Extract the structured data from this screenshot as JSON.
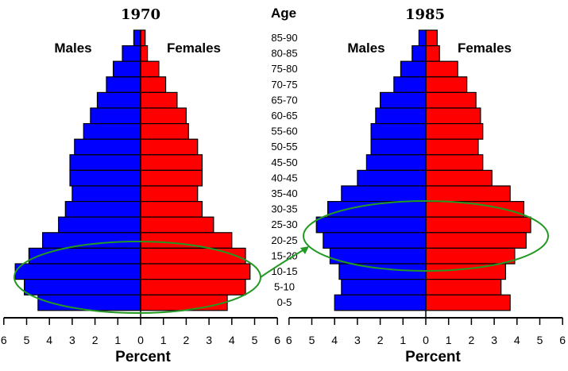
{
  "chart_data": {
    "type": "bar",
    "axis_title": "Age",
    "xlabel": "Percent",
    "xlim": [
      0,
      6
    ],
    "ticks": [
      "6",
      "5",
      "4",
      "3",
      "2",
      "1",
      "0",
      "1",
      "2",
      "3",
      "4",
      "5",
      "6"
    ],
    "categories": [
      "85-90",
      "80-85",
      "75-80",
      "70-75",
      "65-70",
      "60-65",
      "55-60",
      "50-55",
      "45-50",
      "40-45",
      "35-40",
      "30-35",
      "25-30",
      "20-25",
      "15-20",
      "10-15",
      "5-10",
      "0-5"
    ],
    "colors": {
      "male": "#0000ff",
      "female": "#ff0000",
      "highlight": "#229922"
    },
    "panels": [
      {
        "title": "1970",
        "males_label": "Males",
        "females_label": "Females",
        "series": [
          {
            "name": "Males",
            "values": [
              0.3,
              0.8,
              1.2,
              1.5,
              1.9,
              2.2,
              2.5,
              2.9,
              3.1,
              3.1,
              3.0,
              3.3,
              3.6,
              4.3,
              4.9,
              5.5,
              5.1,
              4.5
            ]
          },
          {
            "name": "Females",
            "values": [
              0.2,
              0.3,
              0.8,
              1.1,
              1.6,
              2.0,
              2.1,
              2.5,
              2.7,
              2.7,
              2.5,
              2.7,
              3.2,
              4.0,
              4.6,
              4.8,
              4.6,
              3.8
            ]
          }
        ],
        "highlight": "10-20"
      },
      {
        "title": "1985",
        "males_label": "Males",
        "females_label": "Females",
        "series": [
          {
            "name": "Males",
            "values": [
              0.3,
              0.6,
              1.1,
              1.4,
              2.0,
              2.2,
              2.4,
              2.4,
              2.6,
              3.0,
              3.7,
              4.3,
              4.8,
              4.5,
              4.2,
              3.8,
              3.7,
              4.0
            ]
          },
          {
            "name": "Females",
            "values": [
              0.5,
              0.6,
              1.4,
              1.8,
              2.2,
              2.4,
              2.5,
              2.3,
              2.5,
              2.9,
              3.7,
              4.3,
              4.6,
              4.4,
              3.9,
              3.5,
              3.3,
              3.7
            ]
          }
        ],
        "highlight": "25-35"
      }
    ]
  }
}
